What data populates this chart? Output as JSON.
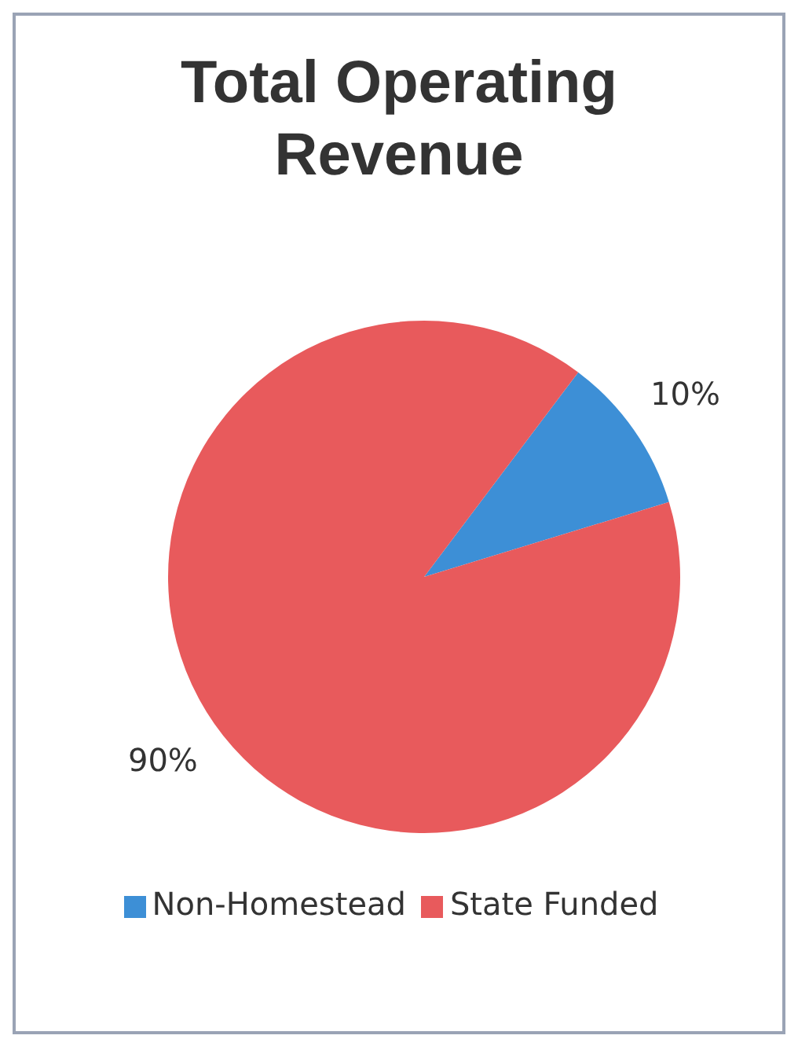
{
  "chart_data": {
    "type": "pie",
    "title": "Total Operating Revenue",
    "categories": [
      "Non-Homestead",
      "State Funded"
    ],
    "values": [
      10,
      90
    ],
    "colors": [
      "#3d8fd6",
      "#e85a5c"
    ],
    "value_labels": [
      "10%",
      "90%"
    ],
    "legend": "bottom"
  }
}
